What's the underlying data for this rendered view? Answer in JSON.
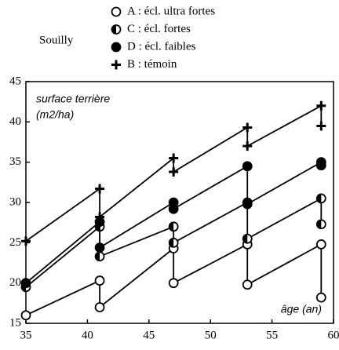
{
  "chart_data": {
    "type": "line",
    "title": "Souilly",
    "y_label": [
      "surface terrière",
      "(m2/ha)"
    ],
    "x_label": "âge (an)",
    "xlim": [
      35,
      60
    ],
    "xticks": [
      35,
      40,
      45,
      50,
      55,
      60
    ],
    "ylim": [
      15,
      45
    ],
    "yticks": [
      15,
      20,
      25,
      30,
      35,
      40,
      45
    ],
    "series": [
      {
        "name": "A : écl. ultra fortes",
        "marker": "open-circle",
        "color": "#000000",
        "x": [
          35,
          41,
          41,
          47,
          47,
          53,
          53,
          59,
          59
        ],
        "values": [
          16.0,
          20.3,
          17.0,
          24.3,
          20.0,
          24.8,
          19.8,
          24.8,
          18.2
        ]
      },
      {
        "name": "C : écl. fortes",
        "marker": "half-circle",
        "color": "#000000",
        "x": [
          35,
          41,
          41,
          47,
          47,
          53,
          53,
          59,
          59
        ],
        "values": [
          19.5,
          27.0,
          23.3,
          27.0,
          25.0,
          30.0,
          25.5,
          30.5,
          27.3
        ]
      },
      {
        "name": "D : écl. faibles",
        "marker": "filled-circle",
        "color": "#000000",
        "x": [
          35,
          41,
          41,
          47,
          47,
          53,
          53,
          59,
          59
        ],
        "values": [
          20.0,
          27.6,
          24.4,
          30.0,
          29.2,
          34.5,
          29.8,
          35.0,
          34.6
        ]
      },
      {
        "name": "B : témoin",
        "marker": "plus",
        "color": "#000000",
        "x": [
          35,
          41,
          41,
          47,
          47,
          53,
          53,
          59,
          59
        ],
        "values": [
          25.2,
          31.7,
          28.2,
          35.5,
          33.8,
          39.3,
          37.0,
          42.0,
          39.5
        ]
      }
    ]
  }
}
